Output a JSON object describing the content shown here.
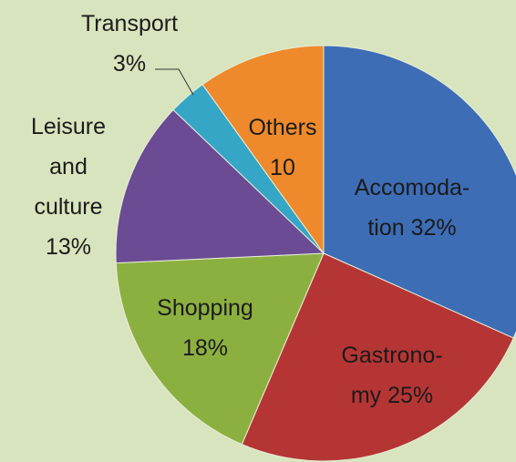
{
  "chart_data": {
    "type": "pie",
    "categories": [
      "Accomoda-\ntion",
      "Gastrono-\nmy",
      "Shopping",
      "Leisure\nand\nculture",
      "Transport",
      "Others"
    ],
    "values": [
      32,
      25,
      18,
      13,
      3,
      10
    ],
    "value_labels": [
      "32%",
      "25%",
      "18%",
      "13%",
      "3%",
      "10"
    ],
    "colors": [
      "#3d6db5",
      "#b53535",
      "#8cb040",
      "#6b4b94",
      "#35a6c6",
      "#ee8a2c"
    ]
  }
}
